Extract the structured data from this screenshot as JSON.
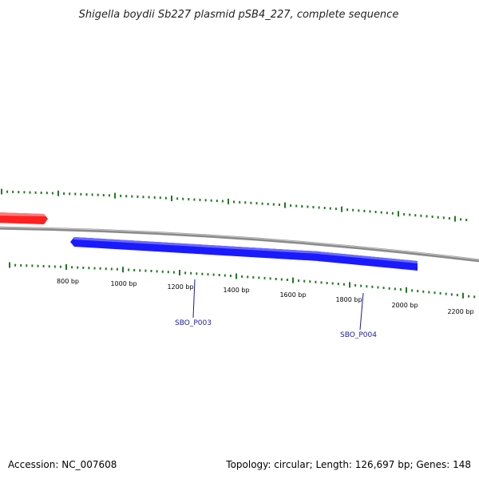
{
  "title": "Shigella boydii Sb227 plasmid pSB4_227, complete sequence",
  "colors": {
    "backbone": "#8a8a8a",
    "tick": "#1f7a1f",
    "forward_gene": "#ff2020",
    "reverse_gene": "#1a1aff",
    "gene_label": "#1a1aa0"
  },
  "tick_labels": [
    "800 bp",
    "1000 bp",
    "1200 bp",
    "1400 bp",
    "1600 bp",
    "1800 bp",
    "2000 bp",
    "2200 bp"
  ],
  "genes": [
    {
      "name": "SBO_P003",
      "strand": "reverse"
    },
    {
      "name": "SBO_P004",
      "strand": "reverse"
    },
    {
      "name": "",
      "strand": "forward"
    }
  ],
  "footer": {
    "accession": "Accession: NC_007608",
    "summary": "Topology: circular; Length: 126,697 bp; Genes: 148"
  }
}
